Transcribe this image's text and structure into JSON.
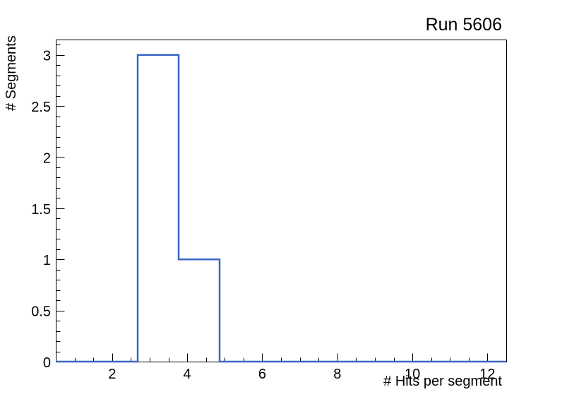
{
  "title": "Run 5606",
  "chart_data": {
    "type": "histogram-step",
    "title": "Run 5606",
    "xlabel": "# Hits per segment",
    "ylabel": "# Segments",
    "xlim": [
      0.5,
      12.5
    ],
    "ylim": [
      0,
      3.15
    ],
    "grid": false,
    "legend": null,
    "line_color": "#3866c6",
    "axis_color": "#000000",
    "background_color": "#ffffff",
    "bin_edges": [
      0.5,
      1.591,
      2.682,
      3.773,
      4.864,
      5.955,
      7.045,
      8.136,
      9.227,
      10.318,
      11.409,
      12.5
    ],
    "counts": [
      0,
      0,
      3,
      1,
      0,
      0,
      0,
      0,
      0,
      0,
      0
    ],
    "x_axis": {
      "major_ticks": [
        2,
        4,
        6,
        8,
        10,
        12
      ],
      "major_tick_labels": [
        "2",
        "4",
        "6",
        "8",
        "10",
        "12"
      ],
      "minor_step": 0.5
    },
    "y_axis": {
      "major_ticks": [
        0,
        0.5,
        1,
        1.5,
        2,
        2.5,
        3
      ],
      "major_tick_labels": [
        "0",
        "0.5",
        "1",
        "1.5",
        "2",
        "2.5",
        "3"
      ],
      "minor_step": 0.1
    }
  }
}
